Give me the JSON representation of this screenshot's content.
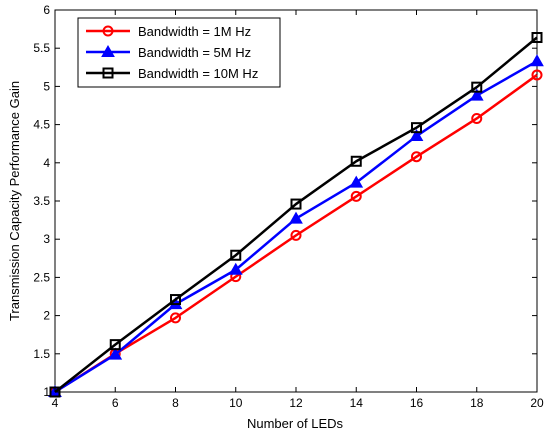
{
  "chart_data": {
    "type": "line",
    "title": "",
    "xlabel": "Number of LEDs",
    "ylabel": "Transmission Capacity Performance Gain",
    "x": [
      4,
      6,
      8,
      10,
      12,
      14,
      16,
      18,
      20
    ],
    "xlim": [
      4,
      20
    ],
    "ylim": [
      1,
      6
    ],
    "x_ticks": [
      "4",
      "6",
      "8",
      "10",
      "12",
      "14",
      "16",
      "18",
      "20"
    ],
    "y_ticks": [
      "1",
      "1.5",
      "2",
      "2.5",
      "3",
      "3.5",
      "4",
      "4.5",
      "5",
      "5.5",
      "6"
    ],
    "grid": false,
    "legend_position": "top-left",
    "series": [
      {
        "name": "Bandwidth = 1M Hz",
        "color": "#ff0000",
        "marker": "circle",
        "values": [
          1.0,
          1.5,
          1.97,
          2.51,
          3.05,
          3.56,
          4.08,
          4.58,
          5.15
        ]
      },
      {
        "name": "Bandwidth = 5M Hz",
        "color": "#0000ff",
        "marker": "triangle",
        "values": [
          1.0,
          1.49,
          2.15,
          2.6,
          3.27,
          3.74,
          4.35,
          4.88,
          5.33
        ]
      },
      {
        "name": "Bandwidth = 10M Hz",
        "color": "#000000",
        "marker": "square",
        "values": [
          1.0,
          1.62,
          2.21,
          2.79,
          3.46,
          4.02,
          4.46,
          4.99,
          5.64
        ]
      }
    ]
  }
}
